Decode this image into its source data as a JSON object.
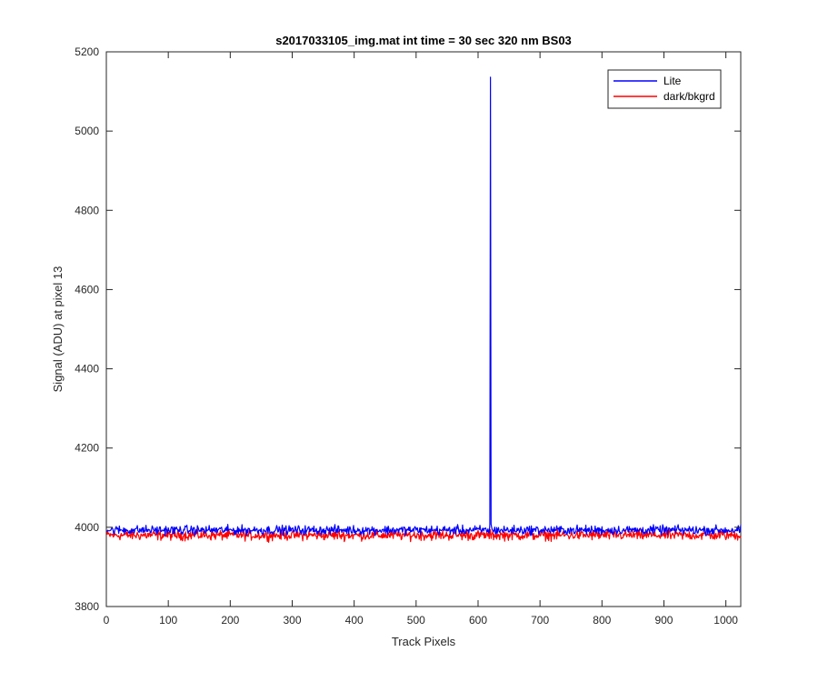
{
  "chart_data": {
    "type": "line",
    "title": "s2017033105_img.mat int time = 30 sec  320 nm BS03",
    "xlabel": "Track Pixels",
    "ylabel": "Signal (ADU) at pixel 13",
    "xlim": [
      0,
      1024
    ],
    "ylim": [
      3800,
      5200
    ],
    "xticks": [
      0,
      100,
      200,
      300,
      400,
      500,
      600,
      700,
      800,
      900,
      1000
    ],
    "yticks": [
      3800,
      4000,
      4200,
      4400,
      4600,
      4800,
      5000,
      5200
    ],
    "grid": false,
    "legend_position": "top-right",
    "series": [
      {
        "name": "Lite",
        "color": "#0000ff",
        "baseline": 3993,
        "noise_amplitude": 8,
        "spike": {
          "x": 620,
          "y": 5136
        }
      },
      {
        "name": "dark/bkgrd",
        "color": "#ff0000",
        "baseline": 3980,
        "noise_amplitude": 9
      }
    ]
  }
}
